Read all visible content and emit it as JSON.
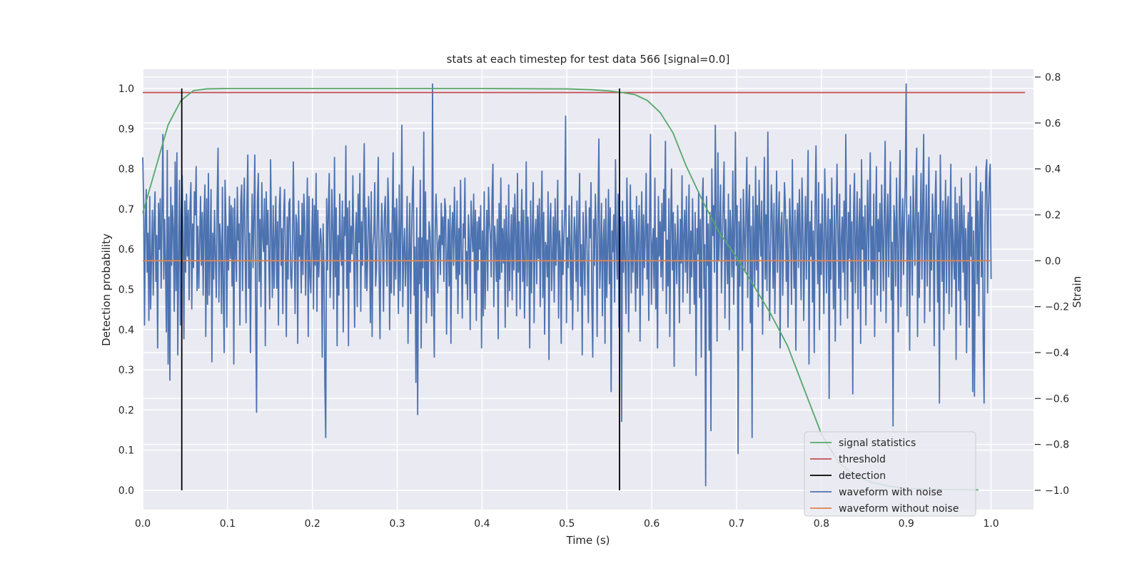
{
  "chart_data": {
    "type": "line",
    "title": "stats at each timestep for test data 566 [signal=0.0]",
    "xlabel": "Time (s)",
    "ylabel": "Detection probability",
    "ylabel_right": "Strain",
    "xlim": [
      0.0,
      1.05
    ],
    "ylim": [
      -0.048,
      1.048
    ],
    "ylim_right": [
      -1.084,
      0.834
    ],
    "xticks": [
      "0.0",
      "0.1",
      "0.2",
      "0.3",
      "0.4",
      "0.5",
      "0.6",
      "0.7",
      "0.8",
      "0.9",
      "1.0"
    ],
    "yticks": [
      "0.0",
      "0.1",
      "0.2",
      "0.3",
      "0.4",
      "0.5",
      "0.6",
      "0.7",
      "0.8",
      "0.9",
      "1.0"
    ],
    "yticks_right": [
      "−1.0",
      "−0.8",
      "−0.6",
      "−0.4",
      "−0.2",
      "0.0",
      "0.2",
      "0.4",
      "0.6",
      "0.8"
    ],
    "grid": true,
    "legend_position": "bottom-right",
    "series": [
      {
        "name": "signal statistics",
        "color": "#55a868",
        "axis": "left",
        "x": [
          0.0,
          0.015,
          0.03,
          0.045,
          0.06,
          0.075,
          0.1,
          0.2,
          0.3,
          0.4,
          0.5,
          0.53,
          0.55,
          0.565,
          0.58,
          0.595,
          0.61,
          0.625,
          0.64,
          0.66,
          0.68,
          0.7,
          0.72,
          0.74,
          0.76,
          0.78,
          0.8,
          0.82,
          0.84,
          0.86,
          0.88,
          0.9,
          0.92,
          0.95,
          0.985
        ],
        "y": [
          0.69,
          0.8,
          0.91,
          0.97,
          0.995,
          0.999,
          1.0,
          1.0,
          1.0,
          1.0,
          0.999,
          0.997,
          0.994,
          0.99,
          0.985,
          0.97,
          0.94,
          0.89,
          0.81,
          0.72,
          0.64,
          0.58,
          0.51,
          0.44,
          0.36,
          0.25,
          0.14,
          0.07,
          0.035,
          0.02,
          0.01,
          0.005,
          0.003,
          0.002,
          0.001
        ]
      },
      {
        "name": "threshold",
        "color": "#c44e52",
        "axis": "left",
        "x": [
          0.0,
          1.04
        ],
        "y": [
          0.99,
          0.99
        ]
      },
      {
        "name": "detection",
        "color": "#000000",
        "axis": "left",
        "x": [
          0.046,
          0.562
        ],
        "y_min": 0.0,
        "y_max": 1.0
      },
      {
        "name": "waveform with noise",
        "color": "#4c72b0",
        "axis": "right",
        "x_start": 0.0,
        "x_end": 1.0,
        "y": [
          0.45,
          0.26,
          -0.28,
          0.18,
          0.31,
          -0.05,
          0.12,
          -0.26,
          0.28,
          -0.21,
          0.02,
          0.22,
          -0.15,
          0.17,
          0.3,
          -0.09,
          0.11,
          -0.38,
          0.25,
          0.05,
          0.27,
          -0.12,
          0.21,
          0.55,
          -0.08,
          0.18,
          -0.03,
          -0.31,
          0.48,
          -0.45,
          0.19,
          -0.52,
          0.32,
          -0.02,
          0.24,
          0.14,
          -0.22,
          0.43,
          -0.13,
          0.47,
          -0.41,
          0.01,
          0.35,
          -0.28,
          0.2,
          0.37,
          0.11,
          -0.34,
          0.26,
          -0.05,
          0.29,
          0.02,
          0.22,
          -0.17,
          0.23,
          0.34,
          -0.21,
          0.16,
          -0.03,
          0.3,
          0.2,
          0.41,
          -0.13,
          0.15,
          -0.12,
          0.09,
          0.28,
          -0.02,
          0.21,
          -0.15,
          0.18,
          0.33,
          -0.33,
          0.27,
          -0.19,
          0.38,
          -0.15,
          0.06,
          0.31,
          -0.44,
          0.12,
          -0.08,
          0.22,
          0.02,
          -0.16,
          0.26,
          0.49,
          -0.18,
          0.16,
          0.07,
          -0.23,
          0.32,
          -0.14,
          -0.4,
          0.35,
          0.18,
          -0.29,
          0.15,
          -0.04,
          0.28,
          0.01,
          0.24,
          -0.11,
          0.23,
          -0.45,
          0.27,
          0.06,
          -0.09,
          0.32,
          0.09,
          0.16,
          -0.28,
          0.26,
          0.33,
          -0.13,
          0.2,
          0.36,
          0.03,
          -0.27,
          0.25,
          0.46,
          -0.12,
          0.12,
          -0.4,
          0.03,
          0.29,
          -0.03,
          0.2,
          0.46,
          -0.23,
          -0.66,
          0.26,
          0.38,
          -0.09,
          0.18,
          -0.2,
          0.34,
          0.11,
          0.04,
          0.27,
          -0.37,
          0.3,
          0.07,
          0.22,
          0.01,
          -0.21,
          0.44,
          0.13,
          -0.16,
          0.24,
          -0.12,
          0.09,
          0.28,
          -0.12,
          0.17,
          -0.28,
          0.23,
          0.32,
          -0.02,
          0.14,
          -0.23,
          0.2,
          0.31,
          0.01,
          -0.33,
          0.19,
          -0.08,
          0.25,
          0.27,
          -0.07,
          -0.12,
          0.05,
          0.43,
          0.13,
          -0.23,
          0.2,
          0.16,
          -0.36,
          0.26,
          0.02,
          0.11,
          -0.14,
          0.25,
          -0.06,
          0.29,
          0.18,
          -0.15,
          0.07,
          0.36,
          -0.33,
          0.28,
          -0.07,
          -0.14,
          0.08,
          0.27,
          -0.21,
          0.24,
          -0.02,
          0.38,
          -0.22,
          0.22,
          -0.07,
          0.04,
          0.14,
          0.08,
          -0.42,
          0.16,
          -0.02,
          -0.53,
          -0.77,
          0.27,
          -0.04,
          0.22,
          0.38,
          -0.16,
          0.02,
          0.31,
          0.13,
          -0.21,
          0.45,
          -0.07,
          0.23,
          -0.37,
          0.11,
          -0.15,
          0.29,
          0.05,
          -0.02,
          0.26,
          -0.31,
          0.19,
          0.11,
          0.5,
          -0.12,
          0.23,
          -0.37,
          0.26,
          -0.05,
          0.15,
          0.03,
          0.37,
          0.05,
          -0.29,
          0.12,
          0.21,
          -0.2,
          0.29,
          0.08,
          0.38,
          -0.22,
          0.17,
          -0.02,
          0.25,
          0.51,
          -0.12,
          0.23,
          -0.13,
          0.03,
          0.28,
          0.14,
          -0.27,
          0.3,
          -0.33,
          0.07,
          0.12,
          0.34,
          -0.11,
          -0.03,
          0.2,
          0.45,
          -0.05,
          -0.34,
          0.08,
          0.25,
          0.1,
          -0.22,
          0.2,
          0.28,
          0.07,
          -0.11,
          0.36,
          0.21,
          -0.3,
          0.12,
          -0.14,
          0.19,
          0.47,
          -0.15,
          0.23,
          -0.08,
          0.27,
          0.09,
          -0.23,
          0.33,
          -0.13,
          0.15,
          0.59,
          -0.2,
          0.04,
          0.14,
          -0.11,
          0.02,
          0.28,
          -0.36,
          0.03,
          0.25,
          -0.23,
          0.09,
          0.3,
          0.41,
          -0.15,
          0.06,
          -0.53,
          0.23,
          -0.67,
          0.1,
          -0.1,
          0.35,
          -0.38,
          0.1,
          -0.03,
          0.56,
          -0.13,
          0.3,
          -0.27,
          0.09,
          -0.16,
          0.17,
          0.13,
          0.0,
          -0.24,
          0.77,
          -0.14,
          -0.42,
          0.12,
          0.29,
          0.15,
          -0.14,
          0.08,
          0.11,
          -0.06,
          0.25,
          0.07,
          0.19,
          -0.09,
          0.27,
          0.22,
          -0.32,
          0.02,
          0.18,
          -0.11,
          0.24,
          -0.36,
          0.13,
          0.21,
          -0.02,
          0.32,
          0.09,
          -0.08,
          0.26,
          -0.23,
          0.14,
          -0.06,
          0.35,
          0.03,
          -0.25,
          0.16,
          0.1,
          0.36,
          -0.1,
          0.04,
          -0.17,
          0.2,
          0.09,
          -0.3,
          0.26,
          0.13,
          0.04,
          0.29,
          -0.14,
          0.22,
          -0.26,
          0.17,
          -0.04,
          0.19,
          0.05,
          0.24,
          -0.38,
          0.13,
          -0.24,
          0.3,
          -0.21,
          0.04,
          0.22,
          -0.13,
          0.32,
          0.17,
          0.11,
          -0.07,
          0.28,
          0.42,
          -0.2,
          0.15,
          0.06,
          -0.09,
          0.18,
          -0.34,
          0.25,
          -0.08,
          0.36,
          -0.05,
          0.14,
          -0.01,
          0.18,
          -0.29,
          0.24,
          0.09,
          -0.2,
          0.33,
          -0.13,
          0.06,
          0.2,
          -0.17,
          0.23,
          -0.04,
          0.29,
          0.13,
          -0.24,
          0.38,
          -0.05,
          0.17,
          -0.21,
          0.12,
          0.31,
          -0.09,
          0.22,
          -0.25,
          0.0,
          0.43,
          -0.11,
          0.19,
          0.07,
          -0.38,
          0.26,
          -0.14,
          0.13,
          0.34,
          -0.27,
          0.11,
          0.18,
          -0.1,
          0.24,
          0.01,
          0.27,
          -0.2,
          0.16,
          0.39,
          -0.16,
          0.21,
          -0.32,
          0.08,
          0.06,
          -0.07,
          0.3,
          -0.43,
          0.16,
          0.25,
          -0.13,
          0.02,
          0.19,
          -0.18,
          0.27,
          -0.02,
          0.11,
          0.35,
          -0.25,
          0.13,
          0.05,
          -0.36,
          0.22,
          -0.06,
          0.09,
          0.21,
          0.63,
          -0.27,
          0.1,
          -0.03,
          0.24,
          0.05,
          -0.17,
          0.28,
          -0.3,
          0.01,
          0.19,
          0.11,
          -0.09,
          0.26,
          -0.22,
          0.15,
          0.38,
          -0.11,
          0.07,
          -0.41,
          0.21,
          0.03,
          -0.15,
          0.26,
          0.15,
          -0.05,
          -0.27,
          0.23,
          0.1,
          0.34,
          -0.19,
          -0.42,
          0.18,
          -0.02,
          0.29,
          0.12,
          -0.33,
          0.21,
          0.53,
          -0.12,
          0.02,
          0.25,
          -0.24,
          0.09,
          0.18,
          -0.36,
          0.27,
          -0.16,
          0.05,
          0.31,
          -0.1,
          0.23,
          -0.57,
          0.13,
          0.04,
          0.2,
          -0.18,
          0.44,
          0.07,
          -0.08,
          0.29,
          -0.29,
          0.14,
          0.19,
          -0.7,
          0.26,
          -0.05,
          0.17,
          0.0,
          -0.23,
          0.36,
          0.11,
          -0.31,
          0.08,
          0.33,
          -0.14,
          0.22,
          -0.05,
          0.18,
          0.02,
          -0.22,
          0.28,
          -0.12,
          0.12,
          0.24,
          -0.35,
          0.07,
          0.3,
          -0.15,
          0.2,
          -0.03,
          0.1,
          0.38,
          -0.08,
          0.16,
          -0.26,
          0.22,
          0.55,
          -0.19,
          0.06,
          0.14,
          -0.12,
          0.36,
          -0.21,
          0.1,
          -0.38,
          0.28,
          0.02,
          0.17,
          -0.07,
          0.25,
          -0.13,
          0.31,
          0.13,
          0.52,
          -0.23,
          0.09,
          -0.11,
          0.27,
          -0.33,
          0.15,
          0.4,
          -0.04,
          0.21,
          -0.46,
          0.16,
          0.05,
          -0.1,
          0.24,
          0.06,
          -0.27,
          0.18,
          -0.01,
          0.37,
          -0.18,
          0.12,
          0.22,
          -0.05,
          0.28,
          -0.14,
          0.08,
          0.33,
          -0.23,
          0.13,
          -0.07,
          0.27,
          0.04,
          -0.19,
          0.21,
          -0.5,
          0.14,
          0.03,
          0.3,
          -0.16,
          0.18,
          -0.42,
          0.25,
          0.36,
          -0.12,
          0.07,
          -0.98,
          0.28,
          -0.02,
          0.16,
          -0.39,
          0.21,
          -0.74,
          0.4,
          0.11,
          0.24,
          -0.05,
          0.59,
          0.2,
          -0.35,
          0.47,
          0.0,
          0.15,
          0.33,
          -0.14,
          0.09,
          0.26,
          0.43,
          -0.25,
          0.18,
          0.05,
          -0.1,
          0.29,
          -0.3,
          0.22,
          0.11,
          -0.07,
          0.39,
          -0.19,
          0.14,
          0.56,
          -0.02,
          0.24,
          -0.84,
          0.17,
          -0.11,
          0.27,
          0.06,
          -0.39,
          0.31,
          0.13,
          -0.05,
          0.23,
          0.45,
          -0.16,
          0.21,
          0.33,
          -0.27,
          0.15,
          -0.77,
          0.28,
          0.09,
          -0.11,
          0.41,
          -0.04,
          0.24,
          -0.2,
          0.35,
          0.16,
          0.02,
          0.26,
          -0.32,
          0.13,
          0.45,
          -0.08,
          0.2,
          -0.13,
          0.56,
          0.11,
          -0.26,
          0.06,
          0.33,
          0.19,
          -0.12,
          0.25,
          -0.23,
          0.08,
          0.39,
          -0.05,
          0.16,
          0.3,
          -0.38,
          0.14,
          0.21,
          -0.15,
          0.09,
          0.34,
          0.24,
          -0.09,
          0.18,
          -0.29,
          0.04,
          0.27,
          0.13,
          -0.19,
          0.44,
          0.06,
          -0.12,
          0.22,
          -0.39,
          0.15,
          0.25,
          -0.03,
          0.31,
          0.1,
          -0.17,
          0.36,
          0.18,
          -0.26,
          0.07,
          0.28,
          -0.08,
          0.2,
          0.48,
          -0.45,
          0.17,
          0.02,
          0.26,
          -0.18,
          0.13,
          -0.4,
          0.23,
          0.5,
          0.09,
          -0.1,
          0.34,
          -0.3,
          0.16,
          -0.06,
          0.29,
          0.05,
          -0.23,
          0.4,
          0.21,
          -0.14,
          0.12,
          0.27,
          -0.6,
          0.18,
          -0.08,
          0.36,
          0.08,
          -0.21,
          0.24,
          -0.35,
          0.15,
          0.42,
          0.11,
          -0.12,
          0.29,
          -0.28,
          0.1,
          0.19,
          -0.05,
          0.26,
          -0.17,
          0.55,
          0.14,
          -0.25,
          0.21,
          0.01,
          0.33,
          -0.09,
          0.17,
          -0.58,
          0.23,
          0.38,
          -0.14,
          0.09,
          0.3,
          -0.21,
          0.14,
          0.27,
          -0.36,
          0.44,
          0.05,
          0.19,
          -0.11,
          0.24,
          -0.28,
          0.12,
          0.35,
          -0.04,
          0.21,
          0.47,
          -0.19,
          0.15,
          -0.08,
          0.29,
          -0.33,
          0.1,
          0.41,
          -0.15,
          0.18,
          0.04,
          0.25,
          -0.22,
          0.33,
          0.11,
          -0.13,
          0.23,
          0.52,
          -0.27,
          0.14,
          0.29,
          -0.07,
          0.2,
          0.43,
          -0.17,
          0.08,
          -0.72,
          0.24,
          0.17,
          -0.11,
          0.36,
          0.06,
          -0.31,
          0.22,
          0.48,
          -0.2,
          0.13,
          0.27,
          -0.06,
          0.18,
          0.34,
          0.77,
          -0.24,
          0.11,
          0.2,
          -0.39,
          0.28,
          0.09,
          -0.15,
          0.37,
          0.16,
          -0.02,
          0.3,
          0.49,
          -0.33,
          0.21,
          -0.16,
          0.14,
          0.38,
          -0.08,
          0.26,
          0.55,
          -0.27,
          0.07,
          0.33,
          -0.11,
          0.19,
          0.45,
          -0.22,
          0.12,
          -0.04,
          0.29,
          0.17,
          -0.37,
          0.24,
          0.39,
          0.08,
          -0.18,
          0.2,
          -0.62,
          0.46,
          0.15,
          -0.09,
          0.26,
          -0.3,
          0.1,
          0.35,
          -0.14,
          0.22,
          0.28,
          -0.23,
          0.13,
          0.42,
          -0.2,
          0.18,
          0.04,
          -0.08,
          0.32,
          -0.43,
          0.25,
          0.11,
          -0.13,
          0.28,
          -0.28,
          0.36,
          0.16,
          -0.05,
          0.24,
          -0.17,
          0.14,
          -0.4,
          0.09,
          0.21,
          -0.29,
          0.38,
          0.02,
          0.19,
          -0.57,
          0.13,
          -0.59,
          0.05,
          0.41,
          -0.1,
          0.26,
          -0.24,
          0.18,
          0.34,
          -0.07,
          0.3,
          -0.35,
          -0.62,
          0.14,
          0.39,
          0.44,
          -0.14,
          0.2,
          0.36,
          0.42,
          -0.08
        ]
      },
      {
        "name": "waveform without noise",
        "color": "#dd8452",
        "axis": "right",
        "x": [
          0.0,
          1.0
        ],
        "y": [
          0.0,
          0.0
        ]
      }
    ]
  }
}
